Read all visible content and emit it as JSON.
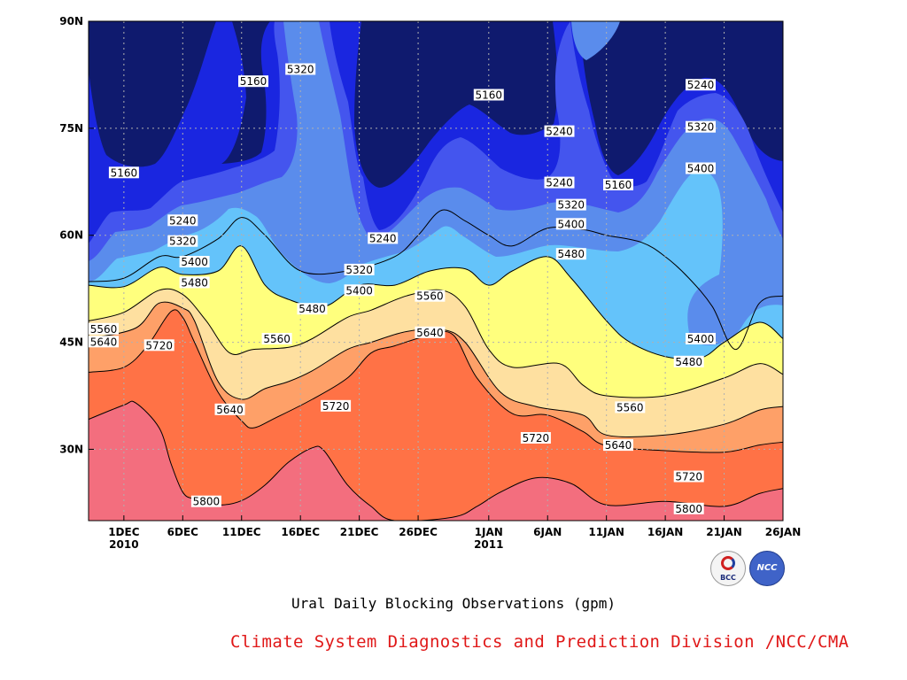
{
  "chart_data": {
    "type": "heatmap",
    "subtype": "filled-contour",
    "title": "",
    "xlabel": "",
    "ylabel": "",
    "x_range": [
      "2010-11-28",
      "2011-01-26"
    ],
    "y_range": [
      20,
      90
    ],
    "x_ticks": [
      {
        "date": "2010-12-01",
        "label": "1DEC",
        "sublabel": "2010"
      },
      {
        "date": "2010-12-06",
        "label": "6DEC",
        "sublabel": ""
      },
      {
        "date": "2010-12-11",
        "label": "11DEC",
        "sublabel": ""
      },
      {
        "date": "2010-12-16",
        "label": "16DEC",
        "sublabel": ""
      },
      {
        "date": "2010-12-21",
        "label": "21DEC",
        "sublabel": ""
      },
      {
        "date": "2010-12-26",
        "label": "26DEC",
        "sublabel": ""
      },
      {
        "date": "2011-01-01",
        "label": "1JAN",
        "sublabel": "2011"
      },
      {
        "date": "2011-01-06",
        "label": "6JAN",
        "sublabel": ""
      },
      {
        "date": "2011-01-11",
        "label": "11JAN",
        "sublabel": ""
      },
      {
        "date": "2011-01-16",
        "label": "16JAN",
        "sublabel": ""
      },
      {
        "date": "2011-01-21",
        "label": "21JAN",
        "sublabel": ""
      },
      {
        "date": "2011-01-26",
        "label": "26JAN",
        "sublabel": ""
      }
    ],
    "y_ticks": [
      {
        "value": 30,
        "label": "30N"
      },
      {
        "value": 45,
        "label": "45N"
      },
      {
        "value": 60,
        "label": "60N"
      },
      {
        "value": 75,
        "label": "75N"
      },
      {
        "value": 90,
        "label": "90N"
      }
    ],
    "contour_levels": [
      5160,
      5240,
      5320,
      5400,
      5480,
      5560,
      5640,
      5720,
      5800
    ],
    "fill_colors": [
      "#0f1a6e",
      "#1a26e0",
      "#4455ee",
      "#5a8cec",
      "#64c3fa",
      "#ffff7d",
      "#fee0a0",
      "#fea068",
      "#ff7246",
      "#f36e7e"
    ],
    "grid": true,
    "isolines": [
      {
        "level": 5800,
        "points": [
          [
            "2010-11-28",
            34.2
          ],
          [
            "2010-12-01",
            36.2
          ],
          [
            "2010-12-02",
            36.5
          ],
          [
            "2010-12-04",
            33
          ],
          [
            "2010-12-05",
            28
          ],
          [
            "2010-12-06",
            24
          ],
          [
            "2010-12-07",
            23
          ],
          [
            "2010-12-09",
            22.2
          ],
          [
            "2010-12-11",
            22.8
          ],
          [
            "2010-12-13",
            25
          ],
          [
            "2010-12-15",
            28.2
          ],
          [
            "2010-12-17",
            30.2
          ],
          [
            "2010-12-18",
            29.8
          ],
          [
            "2010-12-20",
            25
          ],
          [
            "2010-12-22",
            22
          ],
          [
            "2010-12-24",
            20
          ],
          [
            "2010-12-29",
            20.5
          ],
          [
            "2010-12-31",
            22
          ],
          [
            "2011-01-02",
            24
          ],
          [
            "2011-01-05",
            26
          ],
          [
            "2011-01-08",
            25.2
          ],
          [
            "2011-01-11",
            22.2
          ],
          [
            "2011-01-16",
            22.7
          ],
          [
            "2011-01-21",
            22
          ],
          [
            "2011-01-24",
            23.8
          ],
          [
            "2011-01-26",
            24.5
          ]
        ]
      },
      {
        "level": 5720,
        "points": [
          [
            "2010-11-28",
            40.8
          ],
          [
            "2010-12-01",
            41.5
          ],
          [
            "2010-12-03",
            44.5
          ],
          [
            "2010-12-05",
            49.3
          ],
          [
            "2010-12-06",
            48.5
          ],
          [
            "2010-12-07",
            45
          ],
          [
            "2010-12-09",
            38
          ],
          [
            "2010-12-11",
            34
          ],
          [
            "2010-12-12",
            33
          ],
          [
            "2010-12-14",
            34.5
          ],
          [
            "2010-12-17",
            37
          ],
          [
            "2010-12-20",
            40
          ],
          [
            "2010-12-22",
            43.5
          ],
          [
            "2010-12-24",
            44.5
          ],
          [
            "2010-12-27",
            46
          ],
          [
            "2010-12-29",
            46
          ],
          [
            "2010-12-31",
            40
          ],
          [
            "2011-01-03",
            35
          ],
          [
            "2011-01-06",
            34.8
          ],
          [
            "2011-01-09",
            32.5
          ],
          [
            "2011-01-11",
            30.5
          ],
          [
            "2011-01-16",
            29.8
          ],
          [
            "2011-01-21",
            29.6
          ],
          [
            "2011-01-24",
            30.6
          ],
          [
            "2011-01-26",
            31
          ]
        ]
      },
      {
        "level": 5640,
        "points": [
          [
            "2010-11-28",
            45.5
          ],
          [
            "2010-12-02",
            47
          ],
          [
            "2010-12-04",
            50.5
          ],
          [
            "2010-12-06",
            49.8
          ],
          [
            "2010-12-07",
            48
          ],
          [
            "2010-12-09",
            39.5
          ],
          [
            "2010-12-11",
            37
          ],
          [
            "2010-12-13",
            38.5
          ],
          [
            "2010-12-15",
            39.5
          ],
          [
            "2010-12-17",
            41
          ],
          [
            "2010-12-20",
            44
          ],
          [
            "2010-12-22",
            45
          ],
          [
            "2010-12-25",
            46.5
          ],
          [
            "2010-12-28",
            46.8
          ],
          [
            "2010-12-30",
            45
          ],
          [
            "2011-01-02",
            38
          ],
          [
            "2011-01-05",
            36
          ],
          [
            "2011-01-09",
            34.8
          ],
          [
            "2011-01-11",
            32
          ],
          [
            "2011-01-16",
            32
          ],
          [
            "2011-01-21",
            33.5
          ],
          [
            "2011-01-24",
            35.5
          ],
          [
            "2011-01-26",
            36
          ]
        ]
      },
      {
        "level": 5560,
        "points": [
          [
            "2010-11-28",
            48
          ],
          [
            "2010-12-01",
            49.2
          ],
          [
            "2010-12-04",
            52.3
          ],
          [
            "2010-12-06",
            51.7
          ],
          [
            "2010-12-08",
            48
          ],
          [
            "2010-12-10",
            43.5
          ],
          [
            "2010-12-12",
            44
          ],
          [
            "2010-12-15",
            44.3
          ],
          [
            "2010-12-17",
            45.5
          ],
          [
            "2010-12-20",
            48.5
          ],
          [
            "2010-12-22",
            49.5
          ],
          [
            "2010-12-25",
            51.5
          ],
          [
            "2010-12-28",
            52.3
          ],
          [
            "2010-12-30",
            50
          ],
          [
            "2011-01-01",
            44
          ],
          [
            "2011-01-03",
            41.5
          ],
          [
            "2011-01-07",
            42
          ],
          [
            "2011-01-09",
            39
          ],
          [
            "2011-01-11",
            37.5
          ],
          [
            "2011-01-16",
            37.5
          ],
          [
            "2011-01-21",
            40
          ],
          [
            "2011-01-24",
            42
          ],
          [
            "2011-01-26",
            40.5
          ]
        ]
      },
      {
        "level": 5480,
        "points": [
          [
            "2010-11-28",
            53
          ],
          [
            "2010-12-01",
            52.8
          ],
          [
            "2010-12-04",
            55.5
          ],
          [
            "2010-12-06",
            54.5
          ],
          [
            "2010-12-09",
            55
          ],
          [
            "2010-12-11",
            58.5
          ],
          [
            "2010-12-13",
            53
          ],
          [
            "2010-12-15",
            51
          ],
          [
            "2010-12-18",
            50
          ],
          [
            "2010-12-21",
            53
          ],
          [
            "2010-12-24",
            53
          ],
          [
            "2010-12-27",
            55
          ],
          [
            "2010-12-30",
            55.3
          ],
          [
            "2011-01-01",
            53
          ],
          [
            "2011-01-03",
            55
          ],
          [
            "2011-01-06",
            57
          ],
          [
            "2011-01-08",
            54
          ],
          [
            "2011-01-11",
            48
          ],
          [
            "2011-01-13",
            45
          ],
          [
            "2011-01-16",
            43
          ],
          [
            "2011-01-19",
            42.8
          ],
          [
            "2011-01-21",
            45
          ],
          [
            "2011-01-24",
            47.8
          ],
          [
            "2011-01-26",
            45.5
          ]
        ]
      },
      {
        "level": 5400,
        "points": [
          [
            "2010-11-28",
            53.5
          ],
          [
            "2010-12-01",
            54
          ],
          [
            "2010-12-04",
            57
          ],
          [
            "2010-12-06",
            57
          ],
          [
            "2010-12-09",
            59.5
          ],
          [
            "2010-12-11",
            62.5
          ],
          [
            "2010-12-13",
            60
          ],
          [
            "2010-12-16",
            55
          ],
          [
            "2010-12-20",
            55
          ],
          [
            "2010-12-24",
            57
          ],
          [
            "2010-12-26",
            60
          ],
          [
            "2010-12-28",
            63.5
          ],
          [
            "2010-12-30",
            62
          ],
          [
            "2011-01-01",
            60
          ],
          [
            "2011-01-03",
            58.5
          ],
          [
            "2011-01-06",
            61
          ],
          [
            "2011-01-09",
            60.8
          ],
          [
            "2011-01-11",
            60
          ],
          [
            "2011-01-14",
            59
          ],
          [
            "2011-01-16",
            57
          ],
          [
            "2011-01-18",
            54
          ],
          [
            "2011-01-20",
            50
          ],
          [
            "2011-01-22",
            44
          ],
          [
            "2011-01-24",
            50.5
          ],
          [
            "2011-01-26",
            51.5
          ]
        ]
      }
    ],
    "contour_labels": [
      {
        "text": "5160",
        "x": "2010-12-01",
        "y": 68.8
      },
      {
        "text": "5160",
        "x": "2010-12-12",
        "y": 81.6
      },
      {
        "text": "5320",
        "x": "2010-12-16",
        "y": 83.3
      },
      {
        "text": "5240",
        "x": "2010-12-06",
        "y": 62.1
      },
      {
        "text": "5320",
        "x": "2010-12-06",
        "y": 59.2
      },
      {
        "text": "5400",
        "x": "2010-12-07",
        "y": 56.3
      },
      {
        "text": "5480",
        "x": "2010-12-07",
        "y": 53.4
      },
      {
        "text": "5560",
        "x": "2010-11-28",
        "y": 46.9
      },
      {
        "text": "5640",
        "x": "2010-11-28",
        "y": 45.1
      },
      {
        "text": "5720",
        "x": "2010-12-04",
        "y": 44.6
      },
      {
        "text": "5560",
        "x": "2010-12-14",
        "y": 45.5
      },
      {
        "text": "5480",
        "x": "2010-12-17",
        "y": 49.7
      },
      {
        "text": "5320",
        "x": "2010-12-21",
        "y": 55.2
      },
      {
        "text": "5400",
        "x": "2010-12-21",
        "y": 52.3
      },
      {
        "text": "5240",
        "x": "2010-12-23",
        "y": 59.6
      },
      {
        "text": "5640",
        "x": "2010-12-10",
        "y": 35.6
      },
      {
        "text": "5720",
        "x": "2010-12-19",
        "y": 36.1
      },
      {
        "text": "5800",
        "x": "2010-12-08",
        "y": 22.7
      },
      {
        "text": "5560",
        "x": "2010-12-27",
        "y": 51.5
      },
      {
        "text": "5640",
        "x": "2010-12-27",
        "y": 46.4
      },
      {
        "text": "5160",
        "x": "2011-01-01",
        "y": 79.7
      },
      {
        "text": "5240",
        "x": "2011-01-07",
        "y": 74.6
      },
      {
        "text": "5240",
        "x": "2011-01-07",
        "y": 67.4
      },
      {
        "text": "5320",
        "x": "2011-01-08",
        "y": 64.3
      },
      {
        "text": "5400",
        "x": "2011-01-08",
        "y": 61.6
      },
      {
        "text": "5480",
        "x": "2011-01-08",
        "y": 57.4
      },
      {
        "text": "5160",
        "x": "2011-01-12",
        "y": 67.1
      },
      {
        "text": "5240",
        "x": "2011-01-19",
        "y": 81.1
      },
      {
        "text": "5320",
        "x": "2011-01-19",
        "y": 75.2
      },
      {
        "text": "5400",
        "x": "2011-01-19",
        "y": 69.4
      },
      {
        "text": "5400",
        "x": "2011-01-19",
        "y": 45.5
      },
      {
        "text": "5480",
        "x": "2011-01-18",
        "y": 42.3
      },
      {
        "text": "5560",
        "x": "2011-01-13",
        "y": 35.9
      },
      {
        "text": "5640",
        "x": "2011-01-12",
        "y": 30.6
      },
      {
        "text": "5720",
        "x": "2011-01-18",
        "y": 26.2
      },
      {
        "text": "5800",
        "x": "2011-01-18",
        "y": 21.7
      },
      {
        "text": "5720",
        "x": "2011-01-05",
        "y": 31.6
      }
    ]
  },
  "caption": "Ural Daily Blocking Observations (gpm)",
  "footer": "Climate System Diagnostics and Prediction Division /NCC/CMA",
  "logos": {
    "bcc": "BCC",
    "ncc": "NCC"
  }
}
